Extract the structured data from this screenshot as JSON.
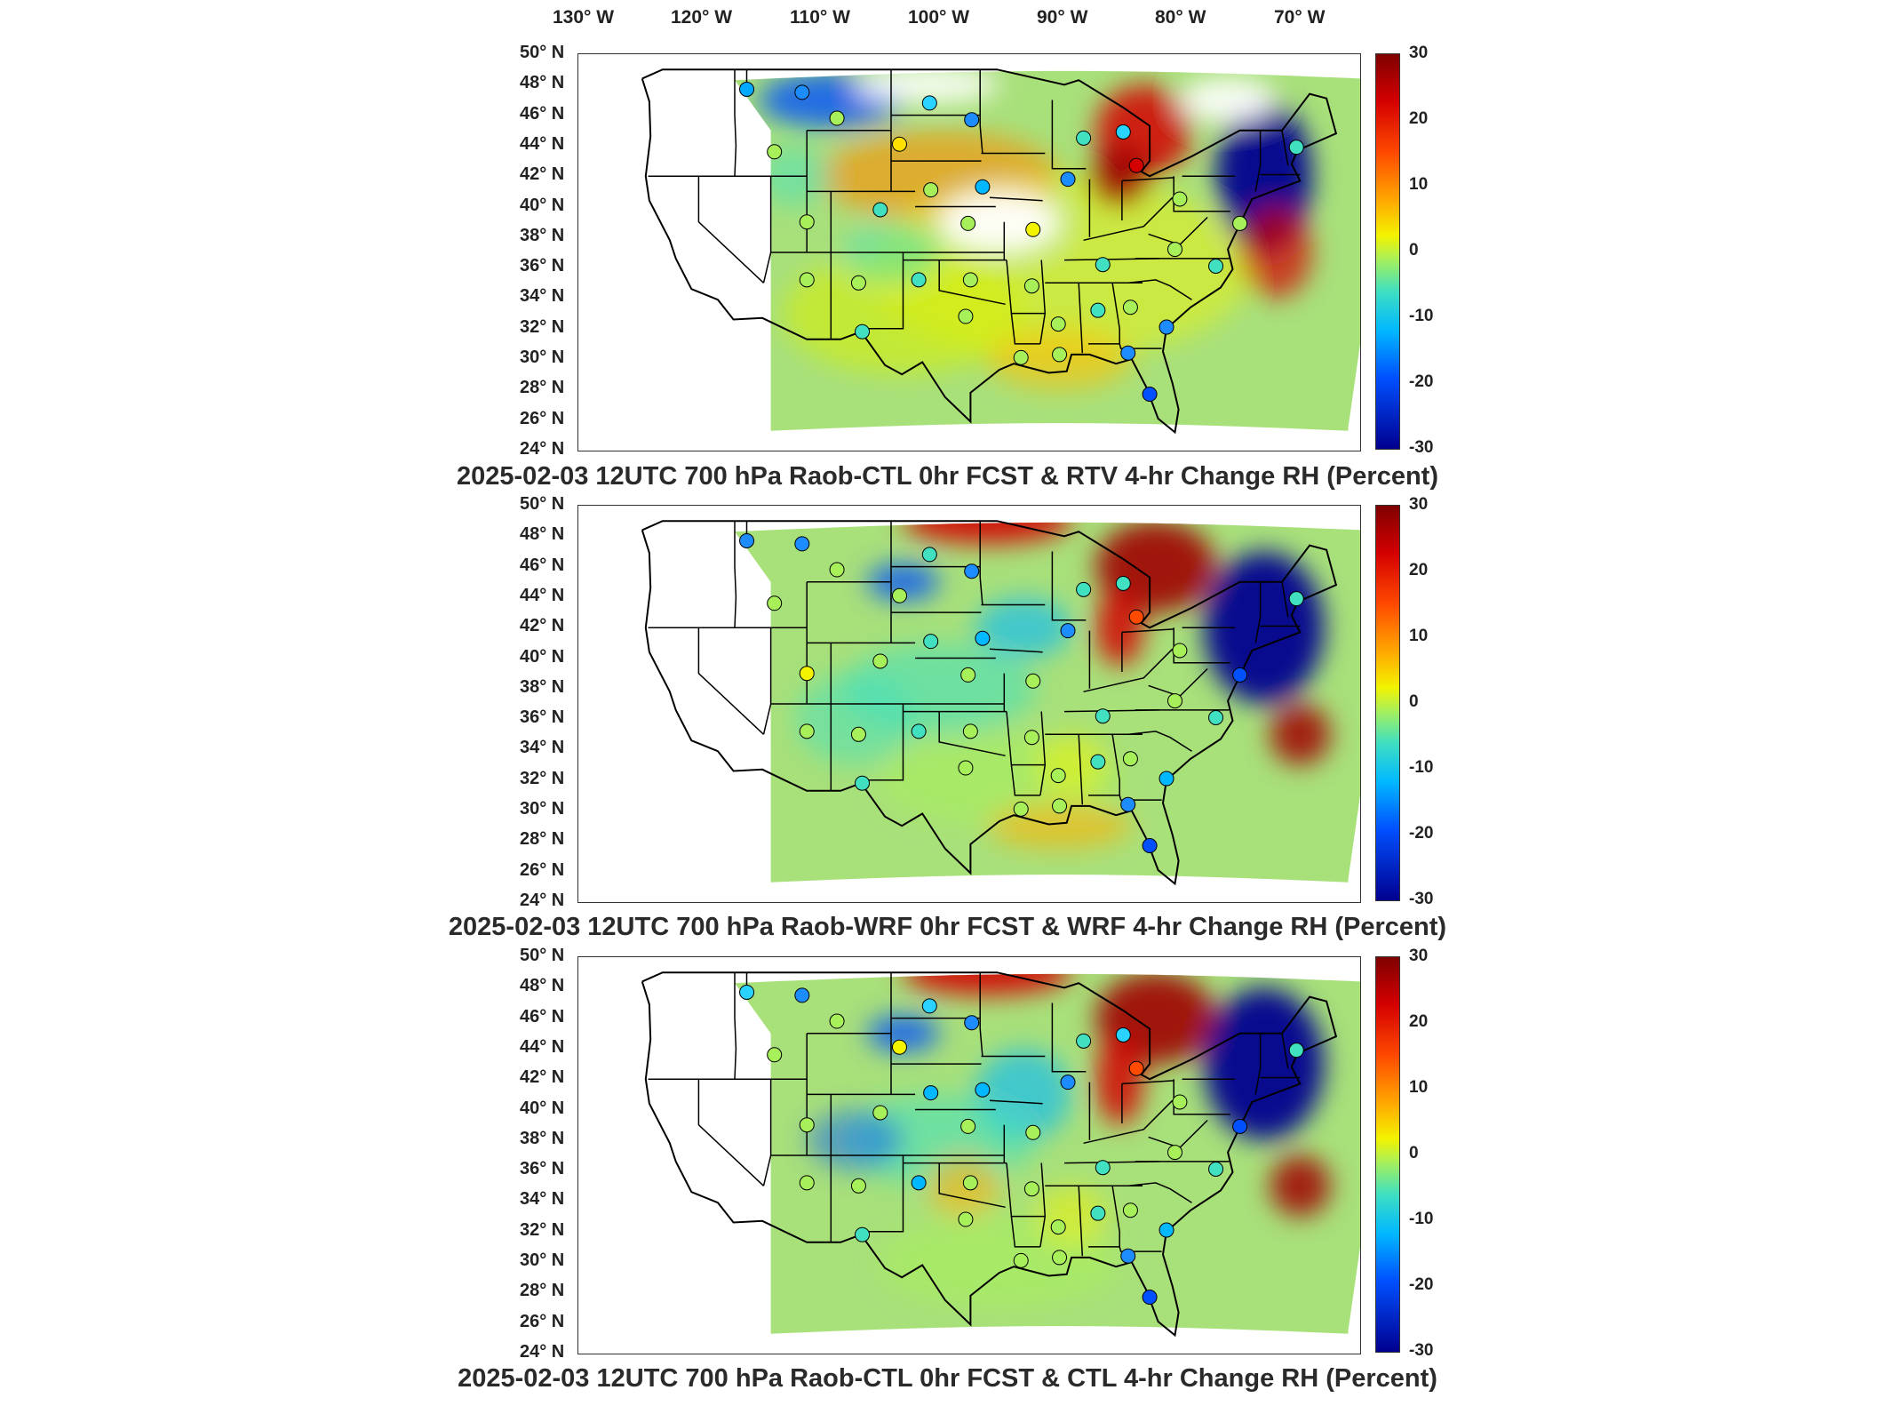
{
  "longitude_labels": [
    "130° W",
    "120° W",
    "110° W",
    "100° W",
    "90° W",
    "80° W",
    "70° W"
  ],
  "latitude_labels": [
    "50° N",
    "48° N",
    "46° N",
    "44° N",
    "42° N",
    "40° N",
    "38° N",
    "36° N",
    "34° N",
    "32° N",
    "30° N",
    "28° N",
    "26° N",
    "24° N"
  ],
  "colorbar": {
    "ticks": [
      "30",
      "20",
      "10",
      "0",
      "-10",
      "-20",
      "-30"
    ],
    "range": [
      -30,
      30
    ],
    "colormap": "jet",
    "colors": [
      "#00008f",
      "#0050ff",
      "#00b8ff",
      "#40e0c0",
      "#a8f05a",
      "#f3f300",
      "#ffb000",
      "#ff4a00",
      "#d40000",
      "#7f0000"
    ]
  },
  "panels": [
    {
      "title": "2025-02-03 12UTC 700 hPa Raob-CTL 0hr FCST & RTV 4-hr Change RH (Percent)"
    },
    {
      "title": "2025-02-03 12UTC 700 hPa Raob-WRF 0hr FCST & WRF 4-hr Change RH (Percent)"
    },
    {
      "title": "2025-02-03 12UTC 700 hPa Raob-CTL 0hr FCST & CTL 4-hr Change RH (Percent)"
    }
  ],
  "map": {
    "extent": {
      "lon": [
        -130,
        -65
      ],
      "lat": [
        24,
        50
      ]
    },
    "coastline_color": "#000000",
    "background_color": "#ffffff",
    "field_domain_color": "#a8e07a"
  },
  "stations": [
    {
      "lon": -116.0,
      "lat": 47.7
    },
    {
      "lon": -111.4,
      "lat": 47.5
    },
    {
      "lon": -100.8,
      "lat": 46.8
    },
    {
      "lon": -97.3,
      "lat": 45.7
    },
    {
      "lon": -108.5,
      "lat": 45.8
    },
    {
      "lon": -103.3,
      "lat": 44.1
    },
    {
      "lon": -113.7,
      "lat": 43.6
    },
    {
      "lon": -100.7,
      "lat": 41.1
    },
    {
      "lon": -96.4,
      "lat": 41.3
    },
    {
      "lon": -88.0,
      "lat": 44.5
    },
    {
      "lon": -84.7,
      "lat": 44.9
    },
    {
      "lon": -89.3,
      "lat": 41.8
    },
    {
      "lon": -83.6,
      "lat": 42.7
    },
    {
      "lon": -80.0,
      "lat": 40.5
    },
    {
      "lon": -75.0,
      "lat": 38.9
    },
    {
      "lon": -111.0,
      "lat": 39.0
    },
    {
      "lon": -104.9,
      "lat": 39.8
    },
    {
      "lon": -97.6,
      "lat": 38.9
    },
    {
      "lon": -92.2,
      "lat": 38.5
    },
    {
      "lon": -86.4,
      "lat": 36.2
    },
    {
      "lon": -80.4,
      "lat": 37.2
    },
    {
      "lon": -77.0,
      "lat": 36.1
    },
    {
      "lon": -111.0,
      "lat": 35.2
    },
    {
      "lon": -106.7,
      "lat": 35.0
    },
    {
      "lon": -101.7,
      "lat": 35.2
    },
    {
      "lon": -97.4,
      "lat": 35.2
    },
    {
      "lon": -92.3,
      "lat": 34.8
    },
    {
      "lon": -90.1,
      "lat": 32.3
    },
    {
      "lon": -86.8,
      "lat": 33.2
    },
    {
      "lon": -84.1,
      "lat": 33.4
    },
    {
      "lon": -81.1,
      "lat": 32.1
    },
    {
      "lon": -106.4,
      "lat": 31.8
    },
    {
      "lon": -97.8,
      "lat": 32.8
    },
    {
      "lon": -93.2,
      "lat": 30.1
    },
    {
      "lon": -90.0,
      "lat": 30.3
    },
    {
      "lon": -84.3,
      "lat": 30.4
    },
    {
      "lon": -82.5,
      "lat": 27.7
    },
    {
      "lon": -70.3,
      "lat": 43.9
    }
  ],
  "station_colors_panel_1": [
    "#00a8ff",
    "#1c8cff",
    "#2ad3ff",
    "#1c8cff",
    "#a8f05a",
    "#ffe000",
    "#a8f05a",
    "#a8f05a",
    "#00b8ff",
    "#40e0c0",
    "#2ad3ff",
    "#1c8cff",
    "#d40000",
    "#a8f05a",
    "#a8f05a",
    "#a8f05a",
    "#40e0c0",
    "#a8f05a",
    "#f3f300",
    "#40e0c0",
    "#a8f05a",
    "#40e0c0",
    "#a8f05a",
    "#a8f05a",
    "#40e0c0",
    "#a8f05a",
    "#a8f05a",
    "#a8f05a",
    "#40e0c0",
    "#a8f05a",
    "#1c8cff",
    "#40e0c0",
    "#a8f05a",
    "#a8f05a",
    "#a8f05a",
    "#1c8cff",
    "#0050ff",
    "#40e0c0"
  ],
  "station_colors_panel_2": [
    "#1c8cff",
    "#1c8cff",
    "#40e0c0",
    "#1c8cff",
    "#a8f05a",
    "#a8f05a",
    "#a8f05a",
    "#40e0c0",
    "#00b8ff",
    "#40e0c0",
    "#40e0c0",
    "#1c8cff",
    "#ff4a00",
    "#a8f05a",
    "#0050ff",
    "#f3f300",
    "#a8f05a",
    "#a8f05a",
    "#a8f05a",
    "#40e0c0",
    "#a8f05a",
    "#40e0c0",
    "#a8f05a",
    "#a8f05a",
    "#40e0c0",
    "#a8f05a",
    "#a8f05a",
    "#a8f05a",
    "#40e0c0",
    "#a8f05a",
    "#00b8ff",
    "#40e0c0",
    "#a8f05a",
    "#a8f05a",
    "#a8f05a",
    "#1c8cff",
    "#0050ff",
    "#40e0c0"
  ],
  "station_colors_panel_3": [
    "#2ad3ff",
    "#1c8cff",
    "#2ad3ff",
    "#1c8cff",
    "#a8f05a",
    "#f3f300",
    "#a8f05a",
    "#00b8ff",
    "#00b8ff",
    "#40e0c0",
    "#2ad3ff",
    "#1c8cff",
    "#ff4a00",
    "#a8f05a",
    "#0050ff",
    "#a8f05a",
    "#a8f05a",
    "#a8f05a",
    "#a8f05a",
    "#40e0c0",
    "#a8f05a",
    "#40e0c0",
    "#a8f05a",
    "#a8f05a",
    "#00b8ff",
    "#a8f05a",
    "#a8f05a",
    "#a8f05a",
    "#40e0c0",
    "#a8f05a",
    "#00b8ff",
    "#40e0c0",
    "#a8f05a",
    "#a8f05a",
    "#a8f05a",
    "#1c8cff",
    "#0050ff",
    "#40e0c0"
  ]
}
